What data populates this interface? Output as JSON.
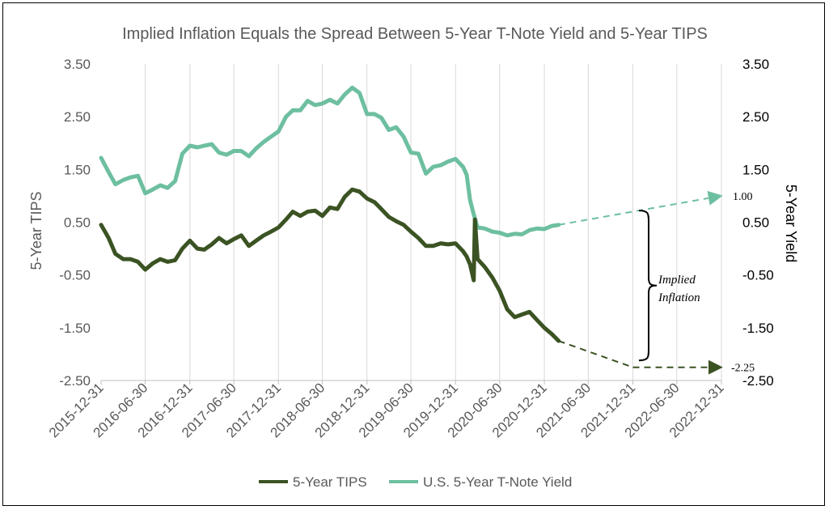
{
  "chart_data": {
    "type": "line",
    "title": "Implied Inflation Equals the Spread Between 5-Year T-Note Yield and 5-Year TIPS",
    "ylabel_left": "5-Year TIPS",
    "ylabel_right": "5-Year Yield",
    "ylim": [
      -2.5,
      3.5
    ],
    "yticks": [
      "3.50",
      "2.50",
      "1.50",
      "0.50",
      "-0.50",
      "-1.50",
      "-2.50"
    ],
    "xticks": [
      "2015-12-31",
      "2016-06-30",
      "2016-12-31",
      "2017-06-30",
      "2017-12-31",
      "2018-06-30",
      "2018-12-31",
      "2019-06-30",
      "2019-12-31",
      "2020-06-30",
      "2020-12-31",
      "2021-06-30",
      "2021-12-31",
      "2022-06-30",
      "2022-12-31"
    ],
    "series": [
      {
        "name": "U.S. 5-Year T-Note Yield",
        "color": "#6dbfa0",
        "values": [
          [
            "2015-12-31",
            1.72
          ],
          [
            "2016-01-31",
            1.45
          ],
          [
            "2016-02-28",
            1.22
          ],
          [
            "2016-03-31",
            1.3
          ],
          [
            "2016-04-30",
            1.35
          ],
          [
            "2016-05-31",
            1.38
          ],
          [
            "2016-06-30",
            1.05
          ],
          [
            "2016-07-31",
            1.12
          ],
          [
            "2016-08-31",
            1.2
          ],
          [
            "2016-09-30",
            1.15
          ],
          [
            "2016-10-31",
            1.28
          ],
          [
            "2016-11-30",
            1.8
          ],
          [
            "2016-12-31",
            1.95
          ],
          [
            "2017-01-31",
            1.92
          ],
          [
            "2017-02-28",
            1.95
          ],
          [
            "2017-03-31",
            1.98
          ],
          [
            "2017-04-30",
            1.82
          ],
          [
            "2017-05-31",
            1.78
          ],
          [
            "2017-06-30",
            1.85
          ],
          [
            "2017-07-31",
            1.85
          ],
          [
            "2017-08-31",
            1.75
          ],
          [
            "2017-09-30",
            1.9
          ],
          [
            "2017-10-31",
            2.02
          ],
          [
            "2017-11-30",
            2.12
          ],
          [
            "2017-12-31",
            2.22
          ],
          [
            "2018-01-31",
            2.5
          ],
          [
            "2018-02-28",
            2.62
          ],
          [
            "2018-03-31",
            2.62
          ],
          [
            "2018-04-30",
            2.8
          ],
          [
            "2018-05-31",
            2.72
          ],
          [
            "2018-06-30",
            2.75
          ],
          [
            "2018-07-31",
            2.82
          ],
          [
            "2018-08-31",
            2.75
          ],
          [
            "2018-09-30",
            2.92
          ],
          [
            "2018-10-31",
            3.05
          ],
          [
            "2018-11-30",
            2.95
          ],
          [
            "2018-12-31",
            2.55
          ],
          [
            "2019-01-31",
            2.55
          ],
          [
            "2019-02-28",
            2.48
          ],
          [
            "2019-03-31",
            2.25
          ],
          [
            "2019-04-30",
            2.3
          ],
          [
            "2019-05-31",
            2.12
          ],
          [
            "2019-06-30",
            1.82
          ],
          [
            "2019-07-31",
            1.8
          ],
          [
            "2019-08-31",
            1.42
          ],
          [
            "2019-09-30",
            1.55
          ],
          [
            "2019-10-31",
            1.58
          ],
          [
            "2019-11-30",
            1.65
          ],
          [
            "2019-12-31",
            1.7
          ],
          [
            "2020-01-31",
            1.55
          ],
          [
            "2020-02-15",
            1.4
          ],
          [
            "2020-02-29",
            0.92
          ],
          [
            "2020-03-15",
            0.65
          ],
          [
            "2020-03-31",
            0.4
          ],
          [
            "2020-04-30",
            0.38
          ],
          [
            "2020-05-31",
            0.32
          ],
          [
            "2020-06-30",
            0.3
          ],
          [
            "2020-07-31",
            0.25
          ],
          [
            "2020-08-31",
            0.28
          ],
          [
            "2020-09-30",
            0.27
          ],
          [
            "2020-10-31",
            0.35
          ],
          [
            "2020-11-30",
            0.38
          ],
          [
            "2020-12-31",
            0.37
          ],
          [
            "2021-01-31",
            0.43
          ],
          [
            "2021-02-28",
            0.45
          ]
        ]
      },
      {
        "name": "5-Year TIPS",
        "color": "#3b5323",
        "values": [
          [
            "2015-12-31",
            0.45
          ],
          [
            "2016-01-31",
            0.2
          ],
          [
            "2016-02-28",
            -0.1
          ],
          [
            "2016-03-31",
            -0.2
          ],
          [
            "2016-04-30",
            -0.2
          ],
          [
            "2016-05-31",
            -0.25
          ],
          [
            "2016-06-30",
            -0.4
          ],
          [
            "2016-07-31",
            -0.28
          ],
          [
            "2016-08-31",
            -0.2
          ],
          [
            "2016-09-30",
            -0.25
          ],
          [
            "2016-10-31",
            -0.22
          ],
          [
            "2016-11-30",
            0.0
          ],
          [
            "2016-12-31",
            0.15
          ],
          [
            "2017-01-31",
            0.0
          ],
          [
            "2017-02-28",
            -0.02
          ],
          [
            "2017-03-31",
            0.08
          ],
          [
            "2017-04-30",
            0.2
          ],
          [
            "2017-05-31",
            0.1
          ],
          [
            "2017-06-30",
            0.18
          ],
          [
            "2017-07-31",
            0.25
          ],
          [
            "2017-08-31",
            0.05
          ],
          [
            "2017-09-30",
            0.15
          ],
          [
            "2017-10-31",
            0.25
          ],
          [
            "2017-11-30",
            0.32
          ],
          [
            "2017-12-31",
            0.4
          ],
          [
            "2018-01-31",
            0.55
          ],
          [
            "2018-02-28",
            0.7
          ],
          [
            "2018-03-31",
            0.62
          ],
          [
            "2018-04-30",
            0.7
          ],
          [
            "2018-05-31",
            0.72
          ],
          [
            "2018-06-30",
            0.62
          ],
          [
            "2018-07-31",
            0.78
          ],
          [
            "2018-08-31",
            0.75
          ],
          [
            "2018-09-30",
            0.98
          ],
          [
            "2018-10-31",
            1.12
          ],
          [
            "2018-11-30",
            1.08
          ],
          [
            "2018-12-31",
            0.95
          ],
          [
            "2019-01-31",
            0.88
          ],
          [
            "2019-02-28",
            0.75
          ],
          [
            "2019-03-31",
            0.6
          ],
          [
            "2019-04-30",
            0.52
          ],
          [
            "2019-05-31",
            0.45
          ],
          [
            "2019-06-30",
            0.32
          ],
          [
            "2019-07-31",
            0.2
          ],
          [
            "2019-08-31",
            0.05
          ],
          [
            "2019-09-30",
            0.05
          ],
          [
            "2019-10-31",
            0.1
          ],
          [
            "2019-11-30",
            0.08
          ],
          [
            "2019-12-31",
            0.1
          ],
          [
            "2020-01-31",
            -0.05
          ],
          [
            "2020-02-15",
            -0.15
          ],
          [
            "2020-02-29",
            -0.3
          ],
          [
            "2020-03-15",
            -0.6
          ],
          [
            "2020-03-20",
            0.55
          ],
          [
            "2020-03-31",
            -0.2
          ],
          [
            "2020-04-30",
            -0.35
          ],
          [
            "2020-05-31",
            -0.55
          ],
          [
            "2020-06-30",
            -0.8
          ],
          [
            "2020-07-31",
            -1.15
          ],
          [
            "2020-08-31",
            -1.3
          ],
          [
            "2020-09-30",
            -1.25
          ],
          [
            "2020-10-31",
            -1.2
          ],
          [
            "2020-11-30",
            -1.35
          ],
          [
            "2020-12-31",
            -1.5
          ],
          [
            "2021-01-31",
            -1.62
          ],
          [
            "2021-02-28",
            -1.75
          ]
        ]
      }
    ],
    "projections": [
      {
        "series": "U.S. 5-Year T-Note Yield",
        "from": [
          "2021-02-28",
          0.45
        ],
        "to": [
          "2022-12-31",
          1.0
        ],
        "label": "1.00"
      },
      {
        "series": "5-Year TIPS",
        "from": [
          "2021-02-28",
          -1.75
        ],
        "to": [
          "2021-12-31",
          -2.25
        ],
        "label": "-2.25"
      },
      {
        "series": "5-Year TIPS",
        "from": [
          "2021-12-31",
          -2.25
        ],
        "to": [
          "2022-12-31",
          -2.25
        ]
      }
    ],
    "annotation": {
      "line1": "Implied",
      "line2": "Inflation"
    },
    "grid": "vertical",
    "legend_position": "bottom"
  }
}
